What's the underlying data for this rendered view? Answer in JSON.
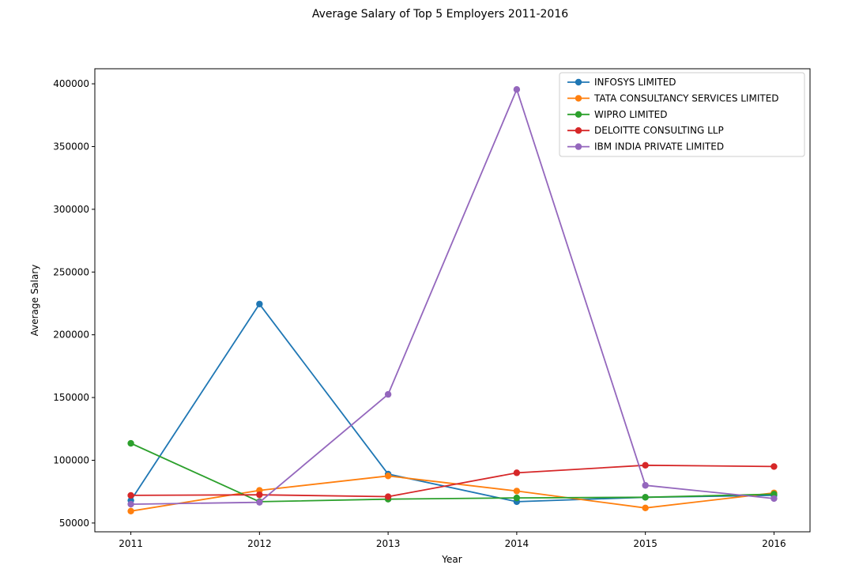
{
  "chart_data": {
    "type": "line",
    "title": "Average Salary of Top 5 Employers 2011-2016",
    "xlabel": "Year",
    "ylabel": "Average Salary",
    "x": [
      "2011",
      "2012",
      "2013",
      "2014",
      "2015",
      "2016"
    ],
    "y_ticks": [
      "50000",
      "100000",
      "150000",
      "200000",
      "250000",
      "300000",
      "350000",
      "400000"
    ],
    "y_tick_values": [
      50000,
      100000,
      150000,
      200000,
      250000,
      300000,
      350000,
      400000
    ],
    "ylim": [
      43000,
      412000
    ],
    "xlim": [
      2010.72,
      2016.28
    ],
    "legend_position": "top-right",
    "grid": false,
    "series": [
      {
        "name": "INFOSYS LIMITED",
        "color": "#1f77b4",
        "values": [
          68000,
          224500,
          89000,
          67000,
          70500,
          72000
        ]
      },
      {
        "name": "TATA CONSULTANCY SERVICES LIMITED",
        "color": "#ff7f0e",
        "values": [
          59500,
          76000,
          87500,
          75500,
          62000,
          74000
        ]
      },
      {
        "name": "WIPRO LIMITED",
        "color": "#2ca02c",
        "values": [
          113500,
          67000,
          69000,
          70000,
          70500,
          73000
        ]
      },
      {
        "name": "DELOITTE CONSULTING LLP",
        "color": "#d62728",
        "values": [
          72000,
          72500,
          71000,
          90000,
          96000,
          95000
        ]
      },
      {
        "name": "IBM INDIA PRIVATE LIMITED",
        "color": "#9467bd",
        "values": [
          65000,
          66500,
          152500,
          395500,
          80000,
          69500
        ]
      }
    ]
  }
}
